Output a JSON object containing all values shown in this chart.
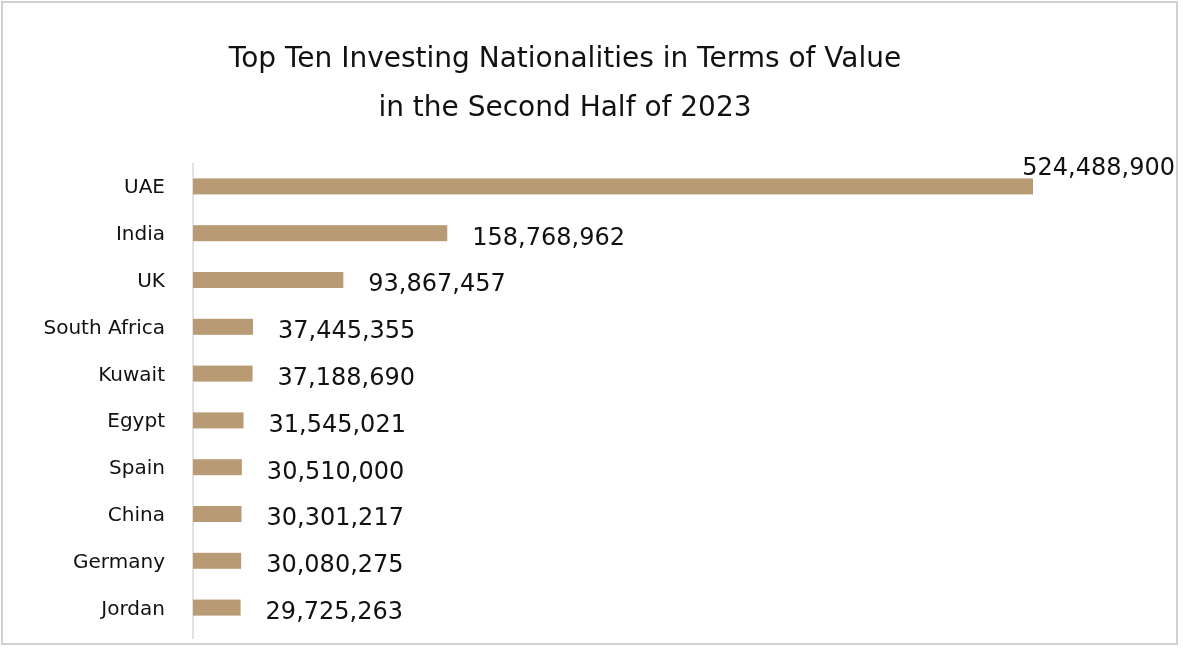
{
  "chart_data": {
    "type": "bar",
    "orientation": "horizontal",
    "title": "Top Ten Investing Nationalities in Terms of Value\nin the Second Half of 2023",
    "categories": [
      "UAE",
      "India",
      "UK",
      "South Africa",
      "Kuwait",
      "Egypt",
      "Spain",
      "China",
      "Germany",
      "Jordan"
    ],
    "values": [
      524488900,
      158768962,
      93867457,
      37445355,
      37188690,
      31545021,
      30510000,
      30301217,
      30080275,
      29725263
    ],
    "value_labels": [
      "524,488,900",
      "158,768,962",
      "93,867,457",
      "37,445,355",
      "37,188,690",
      "31,545,021",
      "30,510,000",
      "30,301,217",
      "30,080,275",
      "29,725,263"
    ],
    "color": "#b89a74"
  }
}
